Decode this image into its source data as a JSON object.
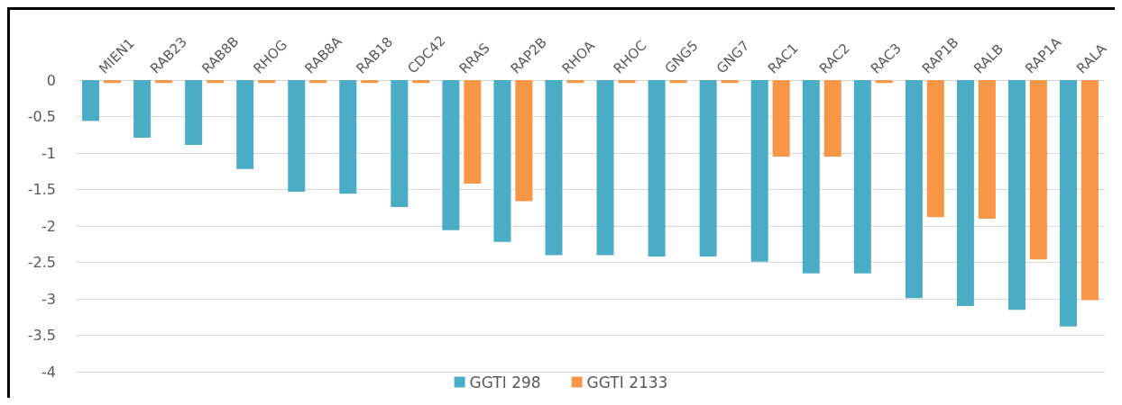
{
  "chart_data": {
    "type": "bar",
    "categories": [
      "MIEN1",
      "RAB23",
      "RAB8B",
      "RHOG",
      "RAB8A",
      "RAB18",
      "CDC42",
      "RRAS",
      "RAP2B",
      "RHOA",
      "RHOC",
      "GNG5",
      "GNG7",
      "RAC1",
      "RAC2",
      "RAC3",
      "RAP1B",
      "RALB",
      "RAP1A",
      "RALA"
    ],
    "series": [
      {
        "name": "GGTI 298",
        "color": "#4bacc6",
        "values": [
          -0.56,
          -0.79,
          -0.89,
          -1.22,
          -1.53,
          -1.56,
          -1.74,
          -2.06,
          -2.22,
          -2.4,
          -2.4,
          -2.42,
          -2.42,
          -2.49,
          -2.65,
          -2.65,
          -2.99,
          -3.1,
          -3.15,
          -3.38
        ]
      },
      {
        "name": "GGTI 2133",
        "color": "#f79646",
        "values": [
          -0.04,
          -0.04,
          -0.04,
          -0.04,
          -0.04,
          -0.04,
          -0.04,
          -1.42,
          -1.66,
          -0.04,
          -0.04,
          -0.04,
          -0.04,
          -1.05,
          -1.05,
          -0.04,
          -1.88,
          -1.9,
          -2.46,
          -3.02
        ]
      }
    ],
    "ylim": [
      -4,
      0
    ],
    "yticks": [
      0,
      -0.5,
      -1,
      -1.5,
      -2,
      -2.5,
      -3,
      -3.5,
      -4
    ],
    "grid": "y",
    "legend": "bottom"
  }
}
